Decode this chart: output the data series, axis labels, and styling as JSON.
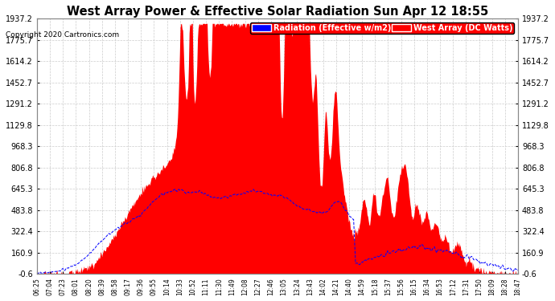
{
  "title": "West Array Power & Effective Solar Radiation Sun Apr 12 18:55",
  "copyright": "Copyright 2020 Cartronics.com",
  "legend_radiation": "Radiation (Effective w/m2)",
  "legend_west": "West Array (DC Watts)",
  "yticks": [
    1937.2,
    1775.7,
    1614.2,
    1452.7,
    1291.2,
    1129.8,
    968.3,
    806.8,
    645.3,
    483.8,
    322.4,
    160.9,
    -0.6
  ],
  "ymin": -0.6,
  "ymax": 1937.2,
  "fill_color_west": "#FF0000",
  "line_color_radiation": "#0000FF",
  "legend_radiation_bg": "#0000FF",
  "legend_west_bg": "#FF0000",
  "grid_color": "#AAAAAA",
  "xtick_labels": [
    "06:25",
    "07:04",
    "07:23",
    "08:01",
    "08:20",
    "08:39",
    "08:58",
    "09:17",
    "09:36",
    "09:55",
    "10:14",
    "10:33",
    "10:52",
    "11:11",
    "11:30",
    "11:49",
    "12:08",
    "12:27",
    "12:46",
    "13:05",
    "13:24",
    "13:43",
    "14:02",
    "14:21",
    "14:40",
    "14:59",
    "15:18",
    "15:37",
    "15:56",
    "16:15",
    "16:34",
    "16:53",
    "17:12",
    "17:31",
    "17:50",
    "18:09",
    "18:28",
    "18:47"
  ]
}
